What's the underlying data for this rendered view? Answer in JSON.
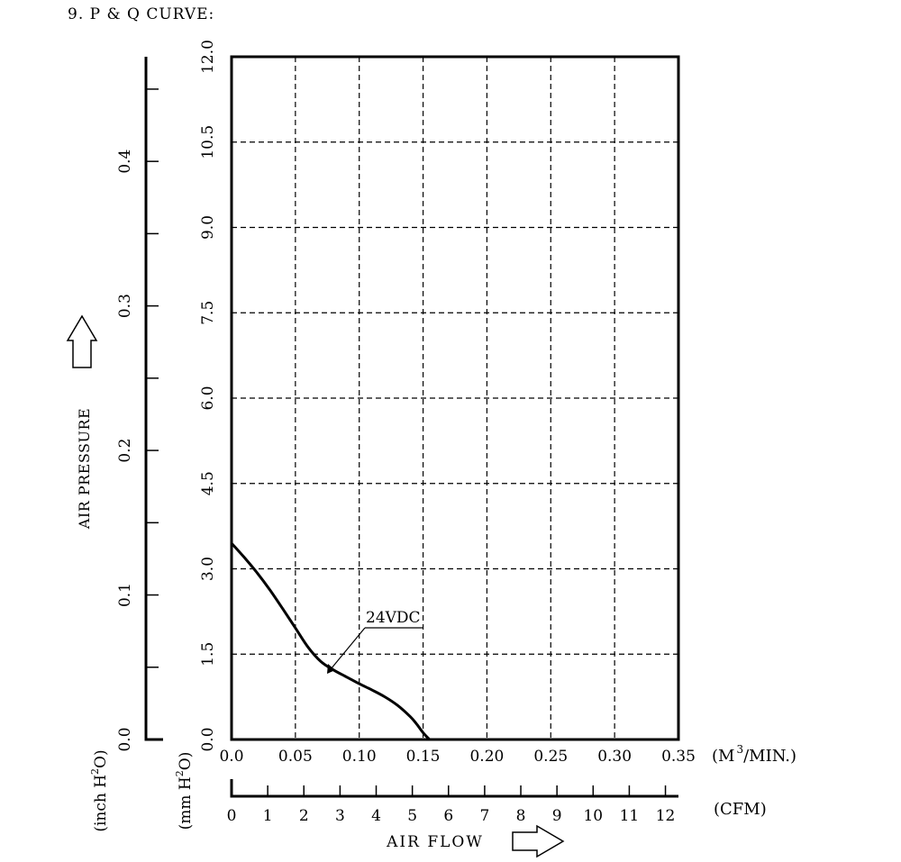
{
  "section_title": "9. P & Q CURVE:",
  "chart_data": {
    "type": "line",
    "title": "",
    "series": [
      {
        "name": "24VDC",
        "points": [
          [
            0.0,
            3.45
          ],
          [
            0.01,
            3.2
          ],
          [
            0.02,
            2.93
          ],
          [
            0.03,
            2.63
          ],
          [
            0.04,
            2.3
          ],
          [
            0.05,
            1.96
          ],
          [
            0.06,
            1.62
          ],
          [
            0.07,
            1.37
          ],
          [
            0.08,
            1.22
          ],
          [
            0.09,
            1.1
          ],
          [
            0.1,
            0.98
          ],
          [
            0.11,
            0.87
          ],
          [
            0.12,
            0.75
          ],
          [
            0.13,
            0.6
          ],
          [
            0.14,
            0.4
          ],
          [
            0.145,
            0.27
          ],
          [
            0.15,
            0.12
          ],
          [
            0.155,
            0.0
          ]
        ]
      }
    ],
    "x_axis": {
      "unit_label_left": "(M",
      "unit_superscript": "3",
      "unit_label_right": "/MIN.)",
      "range": [
        0,
        0.35
      ],
      "ticks": [
        "0.0",
        "0.05",
        "0.10",
        "0.15",
        "0.20",
        "0.25",
        "0.30",
        "0.35"
      ]
    },
    "cfm_axis": {
      "label": "(CFM)",
      "range": [
        0,
        12.36
      ],
      "ticks": [
        "0",
        "1",
        "2",
        "3",
        "4",
        "5",
        "6",
        "7",
        "8",
        "9",
        "10",
        "11",
        "12"
      ]
    },
    "y_mm_axis": {
      "unit_label_prefix": "(mm H",
      "unit_superscript": "2",
      "unit_label_suffix": "O)",
      "range": [
        0,
        12.0
      ],
      "ticks": [
        "0.0",
        "1.5",
        "3.0",
        "4.5",
        "6.0",
        "7.5",
        "9.0",
        "10.5",
        "12.0"
      ]
    },
    "y_inch_axis": {
      "unit_label_prefix": "(inch H",
      "unit_superscript": "2",
      "unit_label_suffix": "O)",
      "range": [
        0,
        0.4724
      ],
      "labeled_ticks": [
        "0.0",
        "0.1",
        "0.2",
        "0.3",
        "0.4"
      ],
      "minor_tick_values": [
        0.05,
        0.15,
        0.25,
        0.35,
        0.45
      ]
    },
    "ylabel": "AIR PRESSURE",
    "xlabel": "AIR FLOW",
    "annotation": "24VDC",
    "grid": true
  }
}
